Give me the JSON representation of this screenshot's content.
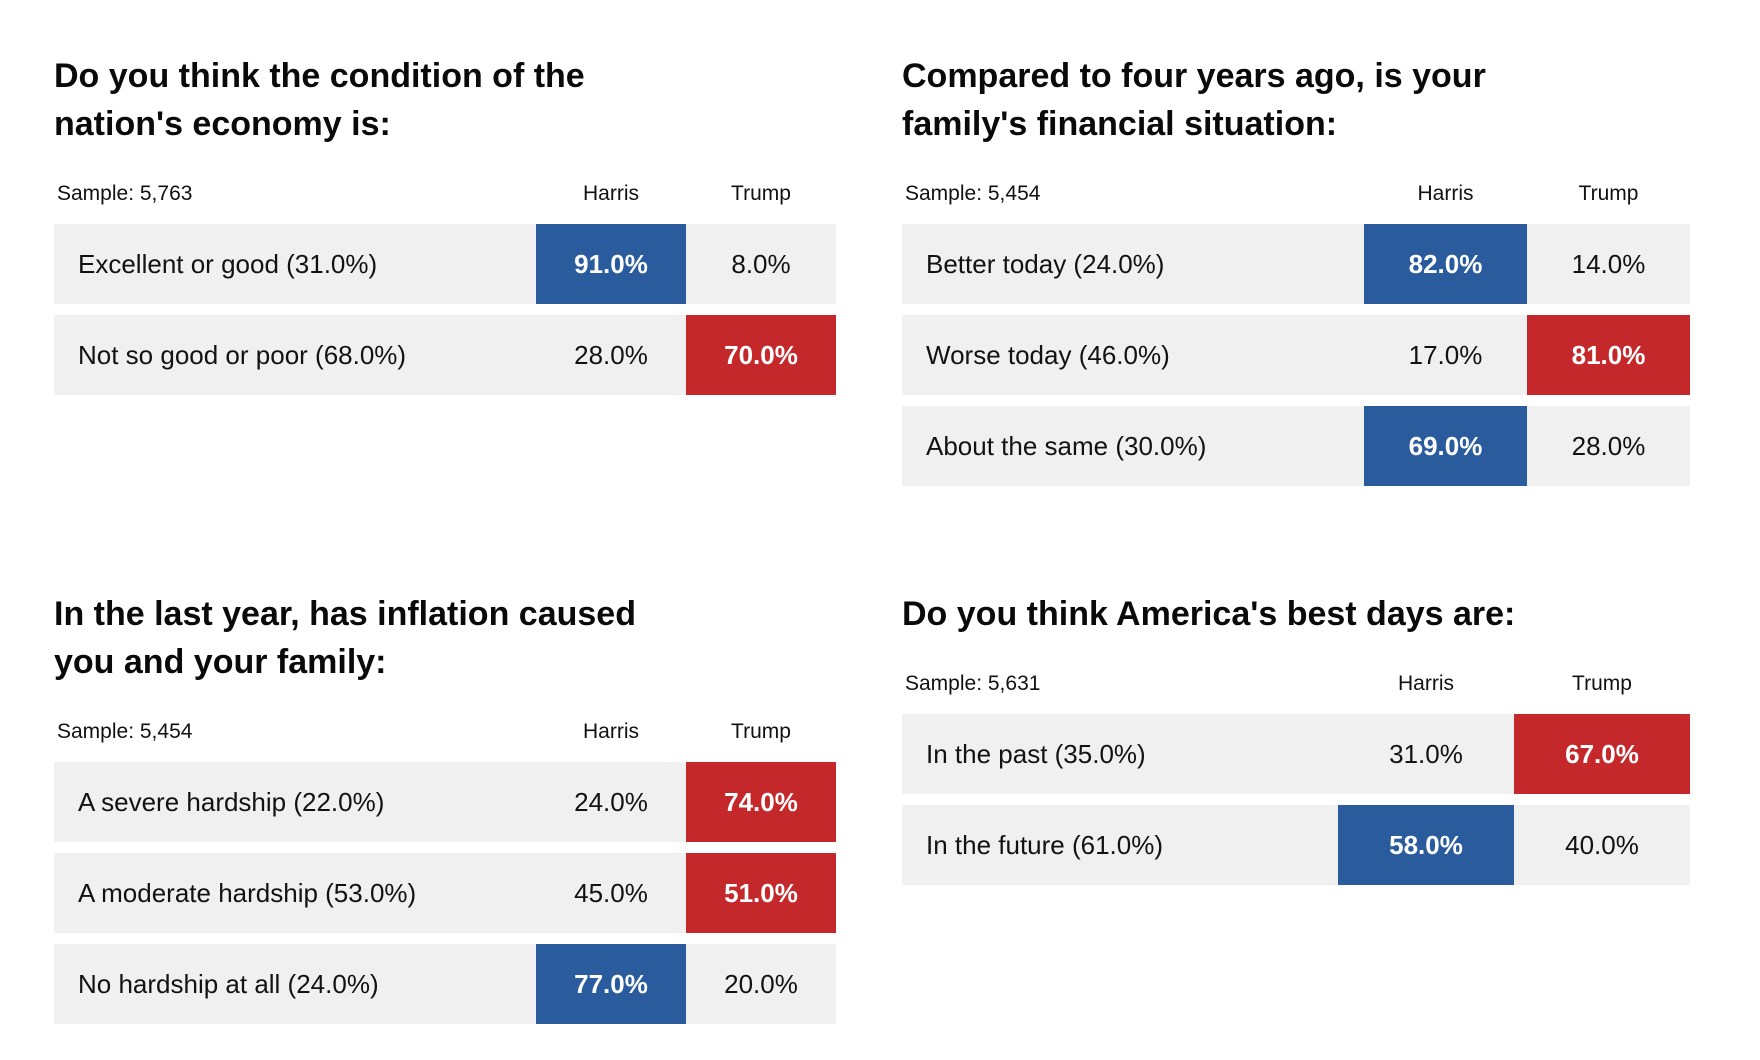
{
  "colors": {
    "harris_blue": "#2a5c9d",
    "trump_red": "#c5282b",
    "row_background": "#f0f0f0"
  },
  "column_headers": {
    "harris": "Harris",
    "trump": "Trump"
  },
  "panels": [
    {
      "title": "Do you think the condition of the\nnation's economy is:",
      "sample": "Sample: 5,763",
      "rows": [
        {
          "label": "Excellent or good (31.0%)",
          "harris": "91.0%",
          "trump": "8.0%",
          "winner": "harris"
        },
        {
          "label": "Not so good or poor (68.0%)",
          "harris": "28.0%",
          "trump": "70.0%",
          "winner": "trump"
        }
      ]
    },
    {
      "title": "Compared to four years ago, is your\nfamily's financial situation:",
      "sample": "Sample: 5,454",
      "rows": [
        {
          "label": "Better today (24.0%)",
          "harris": "82.0%",
          "trump": "14.0%",
          "winner": "harris"
        },
        {
          "label": "Worse today (46.0%)",
          "harris": "17.0%",
          "trump": "81.0%",
          "winner": "trump"
        },
        {
          "label": "About the same (30.0%)",
          "harris": "69.0%",
          "trump": "28.0%",
          "winner": "harris"
        }
      ]
    },
    {
      "title": "In the last year, has inflation caused\nyou and your family:",
      "sample": "Sample: 5,454",
      "rows": [
        {
          "label": "A severe hardship (22.0%)",
          "harris": "24.0%",
          "trump": "74.0%",
          "winner": "trump"
        },
        {
          "label": "A moderate hardship (53.0%)",
          "harris": "45.0%",
          "trump": "51.0%",
          "winner": "trump"
        },
        {
          "label": "No hardship at all (24.0%)",
          "harris": "77.0%",
          "trump": "20.0%",
          "winner": "harris"
        }
      ]
    },
    {
      "title": "Do you think America's best days are:",
      "sample": "Sample: 5,631",
      "rows": [
        {
          "label": "In the past (35.0%)",
          "harris": "31.0%",
          "trump": "67.0%",
          "winner": "trump"
        },
        {
          "label": "In the future (61.0%)",
          "harris": "58.0%",
          "trump": "40.0%",
          "winner": "harris"
        }
      ]
    }
  ],
  "chart_data": [
    {
      "type": "table",
      "title": "Do you think the condition of the nation's economy is:",
      "sample_size": 5763,
      "columns": [
        "Harris",
        "Trump"
      ],
      "rows": [
        {
          "option": "Excellent or good",
          "option_share_pct": 31.0,
          "harris_pct": 91.0,
          "trump_pct": 8.0,
          "highlighted": "Harris"
        },
        {
          "option": "Not so good or poor",
          "option_share_pct": 68.0,
          "harris_pct": 28.0,
          "trump_pct": 70.0,
          "highlighted": "Trump"
        }
      ]
    },
    {
      "type": "table",
      "title": "Compared to four years ago, is your family's financial situation:",
      "sample_size": 5454,
      "columns": [
        "Harris",
        "Trump"
      ],
      "rows": [
        {
          "option": "Better today",
          "option_share_pct": 24.0,
          "harris_pct": 82.0,
          "trump_pct": 14.0,
          "highlighted": "Harris"
        },
        {
          "option": "Worse today",
          "option_share_pct": 46.0,
          "harris_pct": 17.0,
          "trump_pct": 81.0,
          "highlighted": "Trump"
        },
        {
          "option": "About the same",
          "option_share_pct": 30.0,
          "harris_pct": 69.0,
          "trump_pct": 28.0,
          "highlighted": "Harris"
        }
      ]
    },
    {
      "type": "table",
      "title": "In the last year, has inflation caused you and your family:",
      "sample_size": 5454,
      "columns": [
        "Harris",
        "Trump"
      ],
      "rows": [
        {
          "option": "A severe hardship",
          "option_share_pct": 22.0,
          "harris_pct": 24.0,
          "trump_pct": 74.0,
          "highlighted": "Trump"
        },
        {
          "option": "A moderate hardship",
          "option_share_pct": 53.0,
          "harris_pct": 45.0,
          "trump_pct": 51.0,
          "highlighted": "Trump"
        },
        {
          "option": "No hardship at all",
          "option_share_pct": 24.0,
          "harris_pct": 77.0,
          "trump_pct": 20.0,
          "highlighted": "Harris"
        }
      ]
    },
    {
      "type": "table",
      "title": "Do you think America's best days are:",
      "sample_size": 5631,
      "columns": [
        "Harris",
        "Trump"
      ],
      "rows": [
        {
          "option": "In the past",
          "option_share_pct": 35.0,
          "harris_pct": 31.0,
          "trump_pct": 67.0,
          "highlighted": "Trump"
        },
        {
          "option": "In the future",
          "option_share_pct": 61.0,
          "harris_pct": 58.0,
          "trump_pct": 40.0,
          "highlighted": "Harris"
        }
      ]
    }
  ]
}
